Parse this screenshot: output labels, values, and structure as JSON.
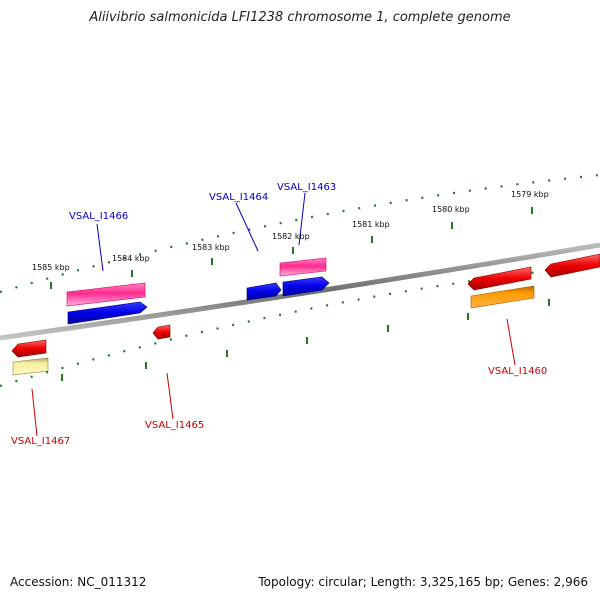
{
  "title": "Aliivibrio salmonicida LFI1238 chromosome 1, complete genome",
  "footer": {
    "accession": "Accession: NC_011312",
    "summary": "Topology: circular; Length: 3,325,165 bp; Genes: 2,966"
  },
  "colors": {
    "backbone": "#8a8a8a",
    "ticks": "#1f7a1f",
    "forward_label": "#0000cc",
    "reverse_label": "#cc0000",
    "pink": "#ff3399",
    "blue": "#0000ee",
    "red": "#ee0000",
    "orange": "#ff8800",
    "pale_yellow": "#f5ec9a"
  },
  "scale_labels": [
    {
      "id": "1585",
      "text": "1585 kbp"
    },
    {
      "id": "1584",
      "text": "1584 kbp"
    },
    {
      "id": "1583",
      "text": "1583 kbp"
    },
    {
      "id": "1582",
      "text": "1582 kbp"
    },
    {
      "id": "1581",
      "text": "1581 kbp"
    },
    {
      "id": "1580",
      "text": "1580 kbp"
    },
    {
      "id": "1579",
      "text": "1579 kbp"
    }
  ],
  "gene_labels": {
    "VSAL_I1466": "VSAL_I1466",
    "VSAL_I1464": "VSAL_I1464",
    "VSAL_I1463": "VSAL_I1463",
    "VSAL_I1465": "VSAL_I1465",
    "VSAL_I1467": "VSAL_I1467",
    "VSAL_I1460": "VSAL_I1460"
  }
}
